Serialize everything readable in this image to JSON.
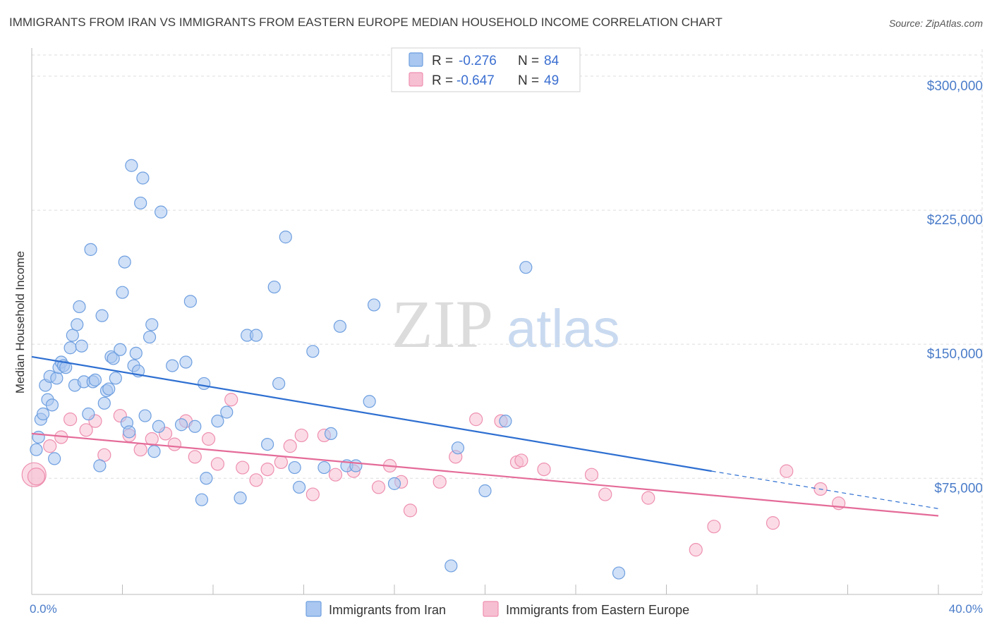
{
  "header": {
    "title": "IMMIGRANTS FROM IRAN VS IMMIGRANTS FROM EASTERN EUROPE MEDIAN HOUSEHOLD INCOME CORRELATION CHART",
    "source": "Source: ZipAtlas.com"
  },
  "watermark": {
    "zip": "ZIP",
    "atlas": "atlas"
  },
  "legend": {
    "r_label": "R =",
    "n_label": "N =",
    "entries": [
      {
        "r": "-0.276",
        "n": "84",
        "color": "#8ab4ea"
      },
      {
        "r": "-0.647",
        "n": "49",
        "color": "#f2a3bf"
      }
    ]
  },
  "bottom_legend": {
    "iran": "Immigrants from Iran",
    "eastern_europe": "Immigrants from Eastern Europe"
  },
  "colors": {
    "iran_fill": "#a9c7f0",
    "iran_stroke": "#6e9fe0",
    "iran_line": "#2e6fd1",
    "ee_fill": "#f7bfd2",
    "ee_stroke": "#ee8fb0",
    "ee_line": "#e46b98",
    "axis_text": "#4a7cc9",
    "grid": "#dddddd"
  },
  "chart_data": {
    "type": "scatter",
    "title": "IMMIGRANTS FROM IRAN VS IMMIGRANTS FROM EASTERN EUROPE MEDIAN HOUSEHOLD INCOME CORRELATION CHART",
    "xlabel": "",
    "ylabel": "Median Household Income",
    "xlim": [
      0,
      40
    ],
    "ylim": [
      10000,
      315000
    ],
    "x_tick_labels": [
      "0.0%",
      "40.0%"
    ],
    "y_ticks": [
      75000,
      150000,
      225000,
      300000
    ],
    "y_tick_labels": [
      "$75,000",
      "$150,000",
      "$225,000",
      "$300,000"
    ],
    "grid": true,
    "series": [
      {
        "name": "Immigrants from Iran",
        "r": -0.276,
        "n": 84,
        "trend": {
          "x0": 0,
          "y0": 143000,
          "x1": 30,
          "y1": 79000,
          "dash_to_x": 40,
          "dash_to_y": 58000
        },
        "points": [
          [
            0.2,
            91000
          ],
          [
            0.3,
            98000
          ],
          [
            0.4,
            108000
          ],
          [
            0.5,
            111000
          ],
          [
            0.6,
            127000
          ],
          [
            0.7,
            119000
          ],
          [
            0.8,
            132000
          ],
          [
            0.9,
            116000
          ],
          [
            1.0,
            86000
          ],
          [
            1.1,
            131000
          ],
          [
            1.2,
            137000
          ],
          [
            1.3,
            140000
          ],
          [
            1.4,
            138000
          ],
          [
            1.5,
            137000
          ],
          [
            1.7,
            148000
          ],
          [
            1.8,
            155000
          ],
          [
            1.9,
            127000
          ],
          [
            2.0,
            161000
          ],
          [
            2.1,
            171000
          ],
          [
            2.2,
            149000
          ],
          [
            2.3,
            129000
          ],
          [
            2.5,
            111000
          ],
          [
            2.6,
            203000
          ],
          [
            2.7,
            129000
          ],
          [
            2.8,
            130000
          ],
          [
            3.0,
            82000
          ],
          [
            3.1,
            166000
          ],
          [
            3.2,
            117000
          ],
          [
            3.3,
            124000
          ],
          [
            3.4,
            125000
          ],
          [
            3.5,
            143000
          ],
          [
            3.6,
            142000
          ],
          [
            3.7,
            131000
          ],
          [
            3.9,
            147000
          ],
          [
            4.0,
            179000
          ],
          [
            4.1,
            196000
          ],
          [
            4.2,
            106000
          ],
          [
            4.3,
            101000
          ],
          [
            4.4,
            250000
          ],
          [
            4.5,
            138000
          ],
          [
            4.6,
            145000
          ],
          [
            4.7,
            135000
          ],
          [
            4.8,
            229000
          ],
          [
            4.9,
            243000
          ],
          [
            5.0,
            110000
          ],
          [
            5.2,
            154000
          ],
          [
            5.3,
            161000
          ],
          [
            5.4,
            90000
          ],
          [
            5.6,
            104000
          ],
          [
            5.7,
            224000
          ],
          [
            6.2,
            138000
          ],
          [
            6.6,
            105000
          ],
          [
            6.8,
            140000
          ],
          [
            7.0,
            174000
          ],
          [
            7.2,
            104000
          ],
          [
            7.5,
            63000
          ],
          [
            7.6,
            128000
          ],
          [
            7.7,
            75000
          ],
          [
            8.2,
            107000
          ],
          [
            8.6,
            112000
          ],
          [
            9.2,
            64000
          ],
          [
            9.5,
            155000
          ],
          [
            9.9,
            155000
          ],
          [
            10.4,
            94000
          ],
          [
            10.7,
            182000
          ],
          [
            10.9,
            128000
          ],
          [
            11.2,
            210000
          ],
          [
            11.6,
            81000
          ],
          [
            11.8,
            70000
          ],
          [
            12.4,
            146000
          ],
          [
            12.9,
            81000
          ],
          [
            13.2,
            100000
          ],
          [
            13.6,
            160000
          ],
          [
            13.9,
            82000
          ],
          [
            14.3,
            82000
          ],
          [
            14.9,
            118000
          ],
          [
            15.1,
            172000
          ],
          [
            16.0,
            72000
          ],
          [
            18.5,
            26000
          ],
          [
            18.8,
            92000
          ],
          [
            20.0,
            68000
          ],
          [
            20.9,
            107000
          ],
          [
            21.8,
            193000
          ],
          [
            25.9,
            22000
          ]
        ]
      },
      {
        "name": "Immigrants from Eastern Europe",
        "r": -0.647,
        "n": 49,
        "trend": {
          "x0": 0,
          "y0": 100000,
          "x1": 40,
          "y1": 54000
        },
        "points": [
          [
            0.1,
            77000
          ],
          [
            0.2,
            76000
          ],
          [
            0.8,
            93000
          ],
          [
            1.3,
            98000
          ],
          [
            1.7,
            108000
          ],
          [
            2.4,
            102000
          ],
          [
            2.8,
            107000
          ],
          [
            3.2,
            88000
          ],
          [
            3.9,
            110000
          ],
          [
            4.3,
            99000
          ],
          [
            4.8,
            91000
          ],
          [
            5.3,
            97000
          ],
          [
            5.9,
            100000
          ],
          [
            6.3,
            94000
          ],
          [
            6.8,
            107000
          ],
          [
            7.2,
            87000
          ],
          [
            7.8,
            97000
          ],
          [
            8.2,
            83000
          ],
          [
            8.8,
            119000
          ],
          [
            9.3,
            81000
          ],
          [
            9.9,
            74000
          ],
          [
            10.4,
            80000
          ],
          [
            11.0,
            84000
          ],
          [
            11.4,
            93000
          ],
          [
            11.9,
            99000
          ],
          [
            12.4,
            66000
          ],
          [
            12.9,
            99000
          ],
          [
            13.4,
            77000
          ],
          [
            14.2,
            79000
          ],
          [
            15.3,
            70000
          ],
          [
            15.8,
            82000
          ],
          [
            16.3,
            73000
          ],
          [
            16.7,
            57000
          ],
          [
            18.0,
            73000
          ],
          [
            18.7,
            87000
          ],
          [
            19.6,
            108000
          ],
          [
            20.7,
            107000
          ],
          [
            21.4,
            84000
          ],
          [
            21.6,
            85000
          ],
          [
            22.6,
            80000
          ],
          [
            24.7,
            77000
          ],
          [
            25.3,
            66000
          ],
          [
            27.2,
            64000
          ],
          [
            29.3,
            35000
          ],
          [
            30.1,
            48000
          ],
          [
            32.7,
            50000
          ],
          [
            33.3,
            79000
          ],
          [
            34.8,
            69000
          ],
          [
            35.6,
            61000
          ]
        ]
      }
    ]
  }
}
